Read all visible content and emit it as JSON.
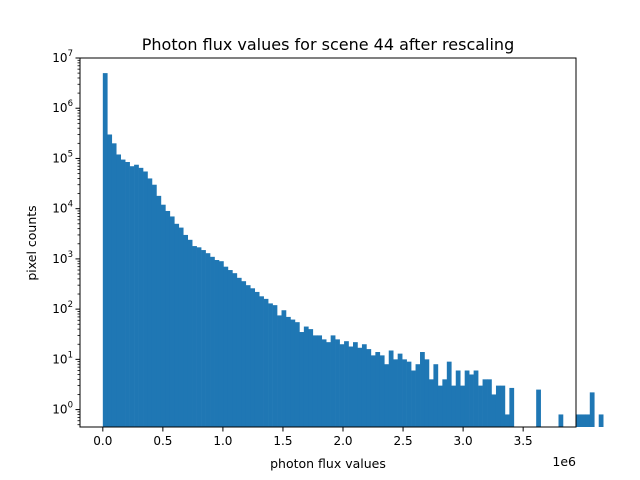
{
  "chart_data": {
    "type": "bar",
    "subtype": "histogram",
    "title": "Photon flux values for scene 44 after rescaling",
    "xlabel": "photon flux values",
    "ylabel": "pixel counts",
    "x_offset_label": "1e6",
    "xscale": "linear",
    "yscale": "log",
    "xlim": [
      -0.19,
      3.94
    ],
    "ylim": [
      0.45,
      10000000
    ],
    "xticks": [
      0.0,
      0.5,
      1.0,
      1.5,
      2.0,
      2.5,
      3.0,
      3.5
    ],
    "xtick_labels": [
      "0.0",
      "0.5",
      "1.0",
      "1.5",
      "2.0",
      "2.5",
      "3.0",
      "3.5"
    ],
    "yticks": [
      {
        "value": 1,
        "base": "10",
        "exp": "0"
      },
      {
        "value": 10,
        "base": "10",
        "exp": "1"
      },
      {
        "value": 100,
        "base": "10",
        "exp": "2"
      },
      {
        "value": 1000,
        "base": "10",
        "exp": "3"
      },
      {
        "value": 10000,
        "base": "10",
        "exp": "4"
      },
      {
        "value": 100000,
        "base": "10",
        "exp": "5"
      },
      {
        "value": 1000000,
        "base": "10",
        "exp": "6"
      },
      {
        "value": 10000000,
        "base": "10",
        "exp": "7"
      }
    ],
    "bin_start": 0.0,
    "bin_width": 0.0372,
    "grid": false,
    "bar_color": "#1f77b4",
    "counts": [
      5000000,
      300000,
      200000,
      120000,
      95000,
      85000,
      70000,
      75000,
      65000,
      55000,
      40000,
      30000,
      18000,
      12000,
      9000,
      7000,
      5000,
      4200,
      3000,
      2400,
      1800,
      1700,
      1500,
      1300,
      1100,
      950,
      900,
      700,
      600,
      520,
      420,
      360,
      300,
      260,
      220,
      180,
      160,
      130,
      120,
      75,
      95,
      70,
      62,
      55,
      35,
      45,
      40,
      30,
      30,
      25,
      22,
      30,
      25,
      20,
      23,
      18,
      22,
      17,
      20,
      16,
      12,
      14,
      12,
      8,
      15,
      10,
      13,
      10,
      9,
      6,
      8,
      14,
      10,
      4,
      8,
      3,
      4,
      9,
      3,
      6,
      3,
      6,
      5,
      6,
      3,
      4,
      4,
      2,
      3,
      3,
      0.8,
      2.7,
      0,
      0,
      0,
      0,
      0,
      2.5,
      0,
      0,
      0,
      0,
      0.8,
      0,
      0,
      0,
      0.8,
      0.8,
      0.8,
      2.2,
      0,
      0.8
    ]
  }
}
